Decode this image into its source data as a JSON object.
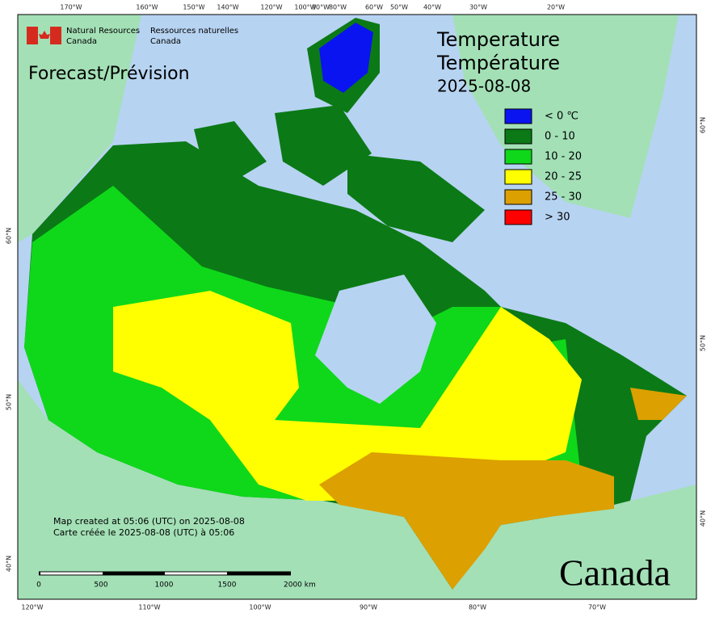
{
  "header": {
    "org_en": [
      "Natural Resources",
      "Canada"
    ],
    "org_fr": [
      "Ressources naturelles",
      "Canada"
    ],
    "product": "Forecast/Prévision"
  },
  "title": {
    "en": "Temperature",
    "fr": "Température",
    "date": "2025-08-08"
  },
  "legend": [
    {
      "label": "< 0 ℃",
      "color": "#0a14f0"
    },
    {
      "label": "0 - 10",
      "color": "#0b7a16"
    },
    {
      "label": "10 - 20",
      "color": "#0fd81a"
    },
    {
      "label": "20 - 25",
      "color": "#ffff00"
    },
    {
      "label": "25 - 30",
      "color": "#dca000"
    },
    {
      "label": "> 30",
      "color": "#ff0000"
    }
  ],
  "graticule": {
    "top": [
      "170°W",
      "160°W",
      "150°W",
      "140°W",
      "120°W",
      "100°W",
      "90°W",
      "80°W",
      "60°W",
      "50°W",
      "40°W",
      "30°W",
      "20°W"
    ],
    "bottom": [
      "120°W",
      "110°W",
      "100°W",
      "90°W",
      "80°W",
      "70°W"
    ],
    "left": [
      "60°N",
      "50°N",
      "40°N"
    ],
    "right": [
      "60°N",
      "50°N",
      "40°N"
    ]
  },
  "footer": {
    "created_en": "Map created at 05:06 (UTC) on 2025-08-08",
    "created_fr": "Carte créée le 2025-08-08 (UTC) à 05:06",
    "scale": [
      "0",
      "500",
      "1000",
      "1500",
      "2000 km"
    ],
    "wordmark": "Canada"
  }
}
